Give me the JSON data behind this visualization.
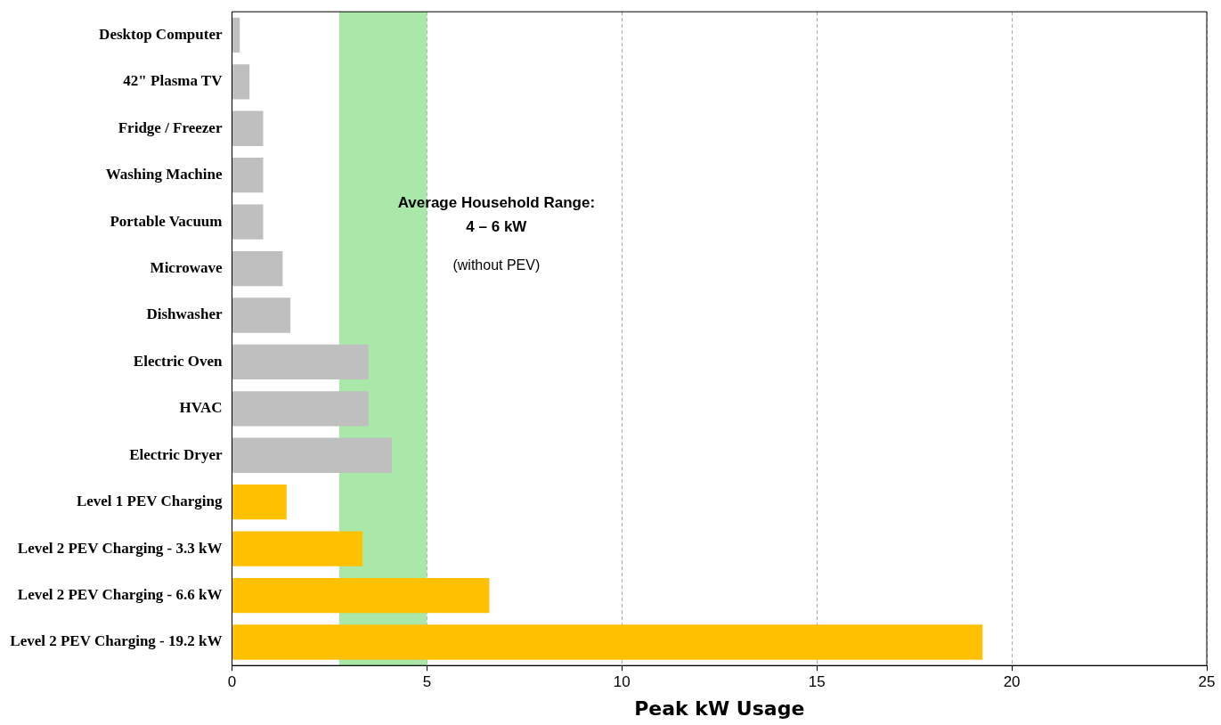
{
  "chart_data": {
    "type": "bar",
    "orientation": "horizontal",
    "xlabel": "Peak kW Usage",
    "categories": [
      "Desktop Computer",
      "42\" Plasma TV",
      "Fridge / Freezer",
      "Washing Machine",
      "Portable Vacuum",
      "Microwave",
      "Dishwasher",
      "Electric Oven",
      "HVAC",
      "Electric Dryer",
      "Level 1 PEV Charging",
      "Level 2 PEV Charging - 3.3 kW",
      "Level 2 PEV Charging - 6.6 kW",
      "Level 2 PEV Charging - 19.2 kW"
    ],
    "values": [
      0.2,
      0.45,
      0.8,
      0.8,
      0.8,
      1.3,
      1.5,
      3.5,
      3.5,
      4.1,
      1.4,
      3.35,
      6.6,
      19.25
    ],
    "colors": [
      "#bfbfbf",
      "#bfbfbf",
      "#bfbfbf",
      "#bfbfbf",
      "#bfbfbf",
      "#bfbfbf",
      "#bfbfbf",
      "#bfbfbf",
      "#bfbfbf",
      "#bfbfbf",
      "#ffc000",
      "#ffc000",
      "#ffc000",
      "#ffc000"
    ],
    "xlim": [
      0,
      25
    ],
    "xticks": [
      0,
      5,
      10,
      15,
      20,
      25
    ],
    "grid": "x",
    "bands": [
      {
        "axis": "x",
        "from": 2.75,
        "to": 5,
        "label": "Average Household Range: 4 – 6 kW",
        "color": "#a9e8a9"
      }
    ],
    "annotations": [
      "(without PEV)"
    ]
  }
}
